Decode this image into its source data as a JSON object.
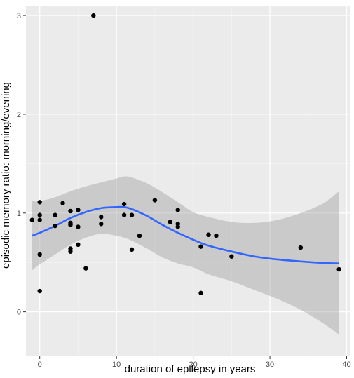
{
  "chart_data": {
    "type": "scatter",
    "xlabel": "duration of epilepsy in years",
    "ylabel": "episodic memory ratio: morning/evening",
    "xlim": [
      -1.8,
      40.5
    ],
    "ylim": [
      -0.45,
      3.1
    ],
    "xticks": [
      0,
      10,
      20,
      30,
      40
    ],
    "yticks": [
      0,
      1,
      2,
      3
    ],
    "grid": true,
    "legend": "none",
    "points": [
      {
        "x": -1,
        "y": 0.93
      },
      {
        "x": 0,
        "y": 1.11
      },
      {
        "x": 0,
        "y": 0.98
      },
      {
        "x": 0,
        "y": 0.93
      },
      {
        "x": 0,
        "y": 0.58
      },
      {
        "x": 0,
        "y": 0.21
      },
      {
        "x": 2,
        "y": 0.98
      },
      {
        "x": 2,
        "y": 0.87
      },
      {
        "x": 3,
        "y": 1.1
      },
      {
        "x": 4,
        "y": 1.02
      },
      {
        "x": 4,
        "y": 0.9
      },
      {
        "x": 4,
        "y": 0.88
      },
      {
        "x": 4,
        "y": 0.64
      },
      {
        "x": 4,
        "y": 0.61
      },
      {
        "x": 5,
        "y": 1.03
      },
      {
        "x": 5,
        "y": 0.86
      },
      {
        "x": 5,
        "y": 0.68
      },
      {
        "x": 6,
        "y": 0.44
      },
      {
        "x": 7,
        "y": 3.0
      },
      {
        "x": 8,
        "y": 0.96
      },
      {
        "x": 8,
        "y": 0.89
      },
      {
        "x": 11,
        "y": 1.09
      },
      {
        "x": 11,
        "y": 0.98
      },
      {
        "x": 12,
        "y": 0.98
      },
      {
        "x": 12,
        "y": 0.63
      },
      {
        "x": 13,
        "y": 0.77
      },
      {
        "x": 15,
        "y": 1.13
      },
      {
        "x": 17,
        "y": 0.91
      },
      {
        "x": 18,
        "y": 1.03
      },
      {
        "x": 18,
        "y": 0.89
      },
      {
        "x": 18,
        "y": 0.86
      },
      {
        "x": 21,
        "y": 0.66
      },
      {
        "x": 21,
        "y": 0.19
      },
      {
        "x": 22,
        "y": 0.78
      },
      {
        "x": 23,
        "y": 0.77
      },
      {
        "x": 25,
        "y": 0.56
      },
      {
        "x": 34,
        "y": 0.65
      },
      {
        "x": 39,
        "y": 0.43
      }
    ],
    "smooth": {
      "x": [
        -1,
        0,
        2,
        4,
        6,
        8,
        10,
        11,
        12,
        14,
        16,
        18,
        20,
        22,
        25,
        28,
        31,
        34,
        37,
        39
      ],
      "y": [
        0.77,
        0.8,
        0.87,
        0.95,
        1.01,
        1.05,
        1.06,
        1.06,
        1.04,
        0.97,
        0.88,
        0.8,
        0.73,
        0.67,
        0.61,
        0.56,
        0.53,
        0.51,
        0.495,
        0.49
      ],
      "upper": [
        1.12,
        1.12,
        1.16,
        1.22,
        1.27,
        1.31,
        1.35,
        1.37,
        1.36,
        1.3,
        1.21,
        1.11,
        1.01,
        0.96,
        0.91,
        0.9,
        0.93,
        1.0,
        1.1,
        1.22
      ],
      "lower": [
        0.42,
        0.48,
        0.58,
        0.68,
        0.75,
        0.79,
        0.77,
        0.75,
        0.72,
        0.64,
        0.55,
        0.49,
        0.45,
        0.38,
        0.31,
        0.22,
        0.13,
        0.02,
        -0.12,
        -0.23
      ]
    },
    "colors": {
      "panel": "#ebebeb",
      "grid_major": "#ffffff",
      "grid_minor": "#f5f5f5",
      "point": "#000000",
      "line": "#3366ff",
      "band": "#999999",
      "text": "#000000",
      "tick_text": "#4d4d4d"
    }
  }
}
